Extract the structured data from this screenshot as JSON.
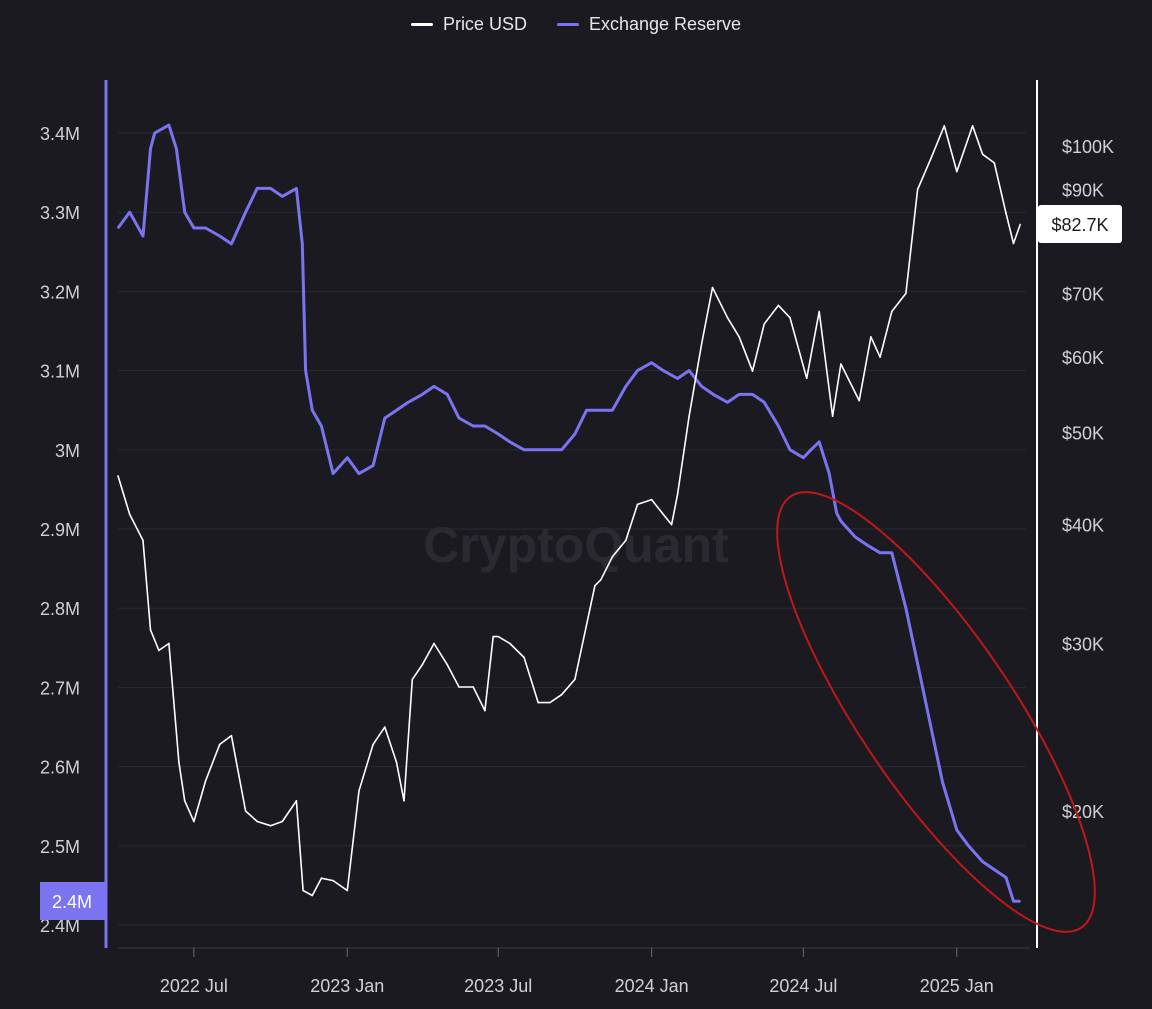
{
  "legend": {
    "price_label": "Price USD",
    "reserve_label": "Exchange Reserve"
  },
  "watermark": "CryptoQuant",
  "colors": {
    "background": "#1b1a21",
    "price": "#ffffff",
    "reserve": "#7a74f0",
    "highlight": "#c01818",
    "grid": "#2a2931",
    "axis_text": "#d0d0d6"
  },
  "chart_data": {
    "type": "line",
    "series": [
      {
        "name": "Exchange Reserve",
        "axis": "left",
        "unit": "BTC",
        "x": [
          "2022-04-01",
          "2022-04-15",
          "2022-05-01",
          "2022-05-10",
          "2022-05-15",
          "2022-06-01",
          "2022-06-10",
          "2022-06-20",
          "2022-07-01",
          "2022-07-15",
          "2022-08-01",
          "2022-08-15",
          "2022-09-01",
          "2022-09-15",
          "2022-10-01",
          "2022-10-15",
          "2022-11-01",
          "2022-11-08",
          "2022-11-12",
          "2022-11-20",
          "2022-12-01",
          "2022-12-15",
          "2023-01-01",
          "2023-01-15",
          "2023-02-01",
          "2023-02-15",
          "2023-03-01",
          "2023-03-15",
          "2023-04-01",
          "2023-04-15",
          "2023-05-01",
          "2023-05-15",
          "2023-06-01",
          "2023-06-15",
          "2023-07-01",
          "2023-07-15",
          "2023-08-01",
          "2023-08-15",
          "2023-09-01",
          "2023-09-15",
          "2023-10-01",
          "2023-10-15",
          "2023-11-01",
          "2023-11-15",
          "2023-12-01",
          "2023-12-15",
          "2024-01-01",
          "2024-01-15",
          "2024-02-01",
          "2024-02-15",
          "2024-03-01",
          "2024-03-15",
          "2024-04-01",
          "2024-04-15",
          "2024-05-01",
          "2024-05-15",
          "2024-06-01",
          "2024-06-15",
          "2024-07-01",
          "2024-07-10",
          "2024-07-20",
          "2024-08-01",
          "2024-08-10",
          "2024-08-15",
          "2024-09-01",
          "2024-09-15",
          "2024-10-01",
          "2024-10-15",
          "2024-11-01",
          "2024-11-15",
          "2024-12-01",
          "2024-12-15",
          "2025-01-01",
          "2025-01-15",
          "2025-02-01",
          "2025-02-15",
          "2025-03-01",
          "2025-03-10",
          "2025-03-18"
        ],
        "values": [
          3.28,
          3.3,
          3.27,
          3.38,
          3.4,
          3.41,
          3.38,
          3.3,
          3.28,
          3.28,
          3.27,
          3.26,
          3.3,
          3.33,
          3.33,
          3.32,
          3.33,
          3.26,
          3.1,
          3.05,
          3.03,
          2.97,
          2.99,
          2.97,
          2.98,
          3.04,
          3.05,
          3.06,
          3.07,
          3.08,
          3.07,
          3.04,
          3.03,
          3.03,
          3.02,
          3.01,
          3.0,
          3.0,
          3.0,
          3.0,
          3.02,
          3.05,
          3.05,
          3.05,
          3.08,
          3.1,
          3.11,
          3.1,
          3.09,
          3.1,
          3.08,
          3.07,
          3.06,
          3.07,
          3.07,
          3.06,
          3.03,
          3.0,
          2.99,
          3.0,
          3.01,
          2.97,
          2.92,
          2.91,
          2.89,
          2.88,
          2.87,
          2.87,
          2.8,
          2.73,
          2.65,
          2.58,
          2.52,
          2.5,
          2.48,
          2.47,
          2.46,
          2.43,
          2.43
        ]
      },
      {
        "name": "Price USD",
        "axis": "right",
        "unit": "USD",
        "x": [
          "2022-04-01",
          "2022-04-15",
          "2022-05-01",
          "2022-05-10",
          "2022-05-20",
          "2022-06-01",
          "2022-06-13",
          "2022-06-20",
          "2022-07-01",
          "2022-07-15",
          "2022-08-01",
          "2022-08-15",
          "2022-09-01",
          "2022-09-15",
          "2022-10-01",
          "2022-10-15",
          "2022-11-01",
          "2022-11-09",
          "2022-11-20",
          "2022-12-01",
          "2022-12-15",
          "2023-01-01",
          "2023-01-15",
          "2023-02-01",
          "2023-02-15",
          "2023-03-01",
          "2023-03-10",
          "2023-03-20",
          "2023-04-01",
          "2023-04-15",
          "2023-05-01",
          "2023-05-15",
          "2023-06-01",
          "2023-06-15",
          "2023-06-25",
          "2023-07-01",
          "2023-07-15",
          "2023-08-01",
          "2023-08-18",
          "2023-09-01",
          "2023-09-15",
          "2023-10-01",
          "2023-10-25",
          "2023-11-01",
          "2023-11-15",
          "2023-12-01",
          "2023-12-15",
          "2024-01-01",
          "2024-01-15",
          "2024-01-25",
          "2024-02-01",
          "2024-02-15",
          "2024-03-01",
          "2024-03-14",
          "2024-04-01",
          "2024-04-15",
          "2024-05-01",
          "2024-05-15",
          "2024-06-01",
          "2024-06-15",
          "2024-07-05",
          "2024-07-20",
          "2024-08-05",
          "2024-08-15",
          "2024-09-06",
          "2024-09-20",
          "2024-10-01",
          "2024-10-15",
          "2024-11-01",
          "2024-11-15",
          "2024-12-01",
          "2024-12-17",
          "2025-01-01",
          "2025-01-20",
          "2025-02-01",
          "2025-02-15",
          "2025-03-01",
          "2025-03-10",
          "2025-03-18"
        ],
        "values": [
          45000,
          41000,
          38500,
          31000,
          29500,
          30000,
          22500,
          20500,
          19500,
          21500,
          23500,
          24000,
          20000,
          19500,
          19300,
          19500,
          20500,
          16500,
          16300,
          17000,
          16900,
          16500,
          21000,
          23500,
          24500,
          22500,
          20500,
          27500,
          28500,
          30000,
          28500,
          27000,
          27000,
          25500,
          30500,
          30500,
          30000,
          29000,
          26000,
          26000,
          26500,
          27500,
          34500,
          35000,
          37000,
          38500,
          42000,
          42500,
          41000,
          40000,
          43000,
          52000,
          62000,
          71000,
          66000,
          63000,
          58000,
          65000,
          68000,
          66000,
          57000,
          67000,
          52000,
          59000,
          54000,
          63000,
          60000,
          67000,
          70000,
          90000,
          97000,
          105000,
          94000,
          105000,
          98000,
          96000,
          85000,
          79000,
          82700
        ]
      }
    ],
    "left_axis": {
      "ticks": [
        "2.4M",
        "2.4M",
        "2.5M",
        "2.6M",
        "2.7M",
        "2.8M",
        "2.9M",
        "3M",
        "3.1M",
        "3.2M",
        "3.3M",
        "3.4M"
      ],
      "current_value_label": "2.4M",
      "range": [
        2.39,
        3.42
      ]
    },
    "right_axis": {
      "scale": "log",
      "ticks": [
        "$20K",
        "$30K",
        "$40K",
        "$50K",
        "$60K",
        "$70K",
        "$90K",
        "$100K"
      ],
      "current_value_label": "$82.7K"
    },
    "x_axis": {
      "ticks": [
        "2022 Jul",
        "2023 Jan",
        "2023 Jul",
        "2024 Jan",
        "2024 Jul",
        "2025 Jan"
      ],
      "range": [
        "2022-04-01",
        "2025-03-25"
      ]
    },
    "grid": true,
    "legend_position": "top-center",
    "annotation": "red ellipse highlighting the Exchange Reserve decline from mid-2024 to 2025"
  }
}
